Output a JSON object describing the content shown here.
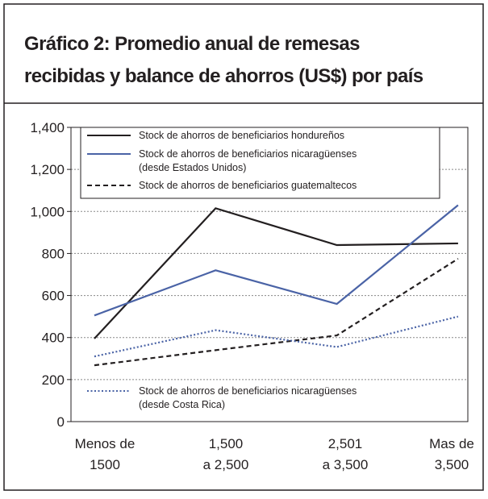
{
  "chart_data": {
    "type": "line",
    "title": [
      "Gráfico 2: Promedio anual de remesas",
      "recibidas y balance de ahorros (US$) por país"
    ],
    "categories": [
      [
        "Menos de",
        "1500"
      ],
      [
        "1,500",
        "a 2,500"
      ],
      [
        "2,501",
        "a 3,500"
      ],
      [
        "Mas de",
        "3,500"
      ]
    ],
    "series": [
      {
        "name": [
          "Stock de ahorros de beneficiarios hondureños"
        ],
        "color": "#231f20",
        "dash": "solid",
        "values": [
          395,
          1015,
          840,
          848
        ]
      },
      {
        "name": [
          "Stock de ahorros de beneficiarios nicaragüenses",
          "(desde Estados Unidos)"
        ],
        "color": "#4a63a6",
        "dash": "solid",
        "values": [
          505,
          720,
          560,
          1030
        ]
      },
      {
        "name": [
          "Stock de ahorros de beneficiarios guatemaltecos"
        ],
        "color": "#231f20",
        "dash": "dashed",
        "values": [
          268,
          340,
          410,
          775
        ]
      },
      {
        "name": [
          "Stock de ahorros de beneficiarios nicaragüenses",
          "(desde Costa Rica)"
        ],
        "color": "#4a63a6",
        "dash": "dotted",
        "values": [
          310,
          435,
          355,
          500
        ]
      }
    ],
    "ylim": [
      0,
      1400
    ],
    "yticks": [
      0,
      200,
      400,
      600,
      800,
      {
        "value": 1000,
        "label": "1,000"
      },
      {
        "value": 1200,
        "label": "1,200"
      },
      {
        "value": 1400,
        "label": "1,400"
      }
    ],
    "grid": true
  }
}
